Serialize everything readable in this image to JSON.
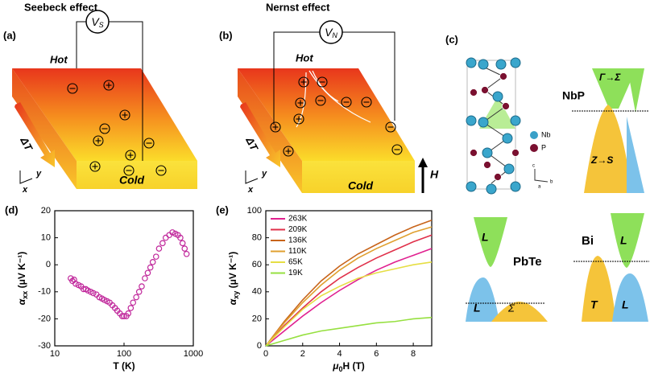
{
  "panels": {
    "a": {
      "label": "(a)",
      "title": "Seebeck effect",
      "voltage": {
        "main": "V",
        "sub": "S"
      },
      "hot": "Hot",
      "cold": "Cold",
      "gradient": "ΔT",
      "axis_y": "y",
      "axis_x": "x"
    },
    "b": {
      "label": "(b)",
      "title": "Nernst effect",
      "voltage": {
        "main": "V",
        "sub": "N"
      },
      "hot": "Hot",
      "cold": "Cold",
      "gradient": "ΔT",
      "axis_y": "y",
      "axis_x": "x",
      "field": "H"
    },
    "c": {
      "label": "(c)",
      "atoms": [
        "Nb",
        "P"
      ],
      "crystal_axes": [
        "c",
        "a",
        "b"
      ],
      "nbp": {
        "name": "NbP",
        "upper": "Γ→Σ",
        "lower": "Z→S"
      },
      "pbte": {
        "name": "PbTe",
        "upper": "L",
        "lower_left": "L",
        "lower_right": "Σ"
      },
      "bi": {
        "name": "Bi",
        "upper": "L",
        "lower_left": "T",
        "lower_right": "L"
      }
    }
  },
  "chart_data": [
    {
      "type": "scatter",
      "panel": "(d)",
      "color": "#c0279b",
      "xlabel": "T (K)",
      "ylabel": {
        "text": "α",
        "sub": "xx",
        "rest": " (μV K⁻¹)"
      },
      "xscale": "log",
      "xlim": [
        10,
        1000
      ],
      "xticks": [
        10,
        100,
        1000
      ],
      "ylim": [
        -30,
        20
      ],
      "yticks": [
        -30,
        -20,
        -10,
        0,
        10,
        20
      ],
      "x": [
        17,
        18,
        19,
        20,
        22,
        24,
        26,
        28,
        30,
        33,
        36,
        40,
        44,
        48,
        52,
        57,
        62,
        68,
        74,
        80,
        87,
        94,
        100,
        108,
        115,
        125,
        135,
        150,
        165,
        180,
        200,
        220,
        240,
        260,
        290,
        320,
        360,
        400,
        450,
        500,
        550,
        600,
        650,
        700,
        750,
        800
      ],
      "values": [
        -5,
        -6,
        -5.5,
        -7,
        -7.5,
        -8,
        -9,
        -9,
        -9.5,
        -10,
        -10.5,
        -11,
        -12,
        -12.5,
        -13,
        -13.5,
        -14,
        -15,
        -16,
        -17,
        -18,
        -19,
        -19,
        -19,
        -18,
        -16,
        -14,
        -12,
        -10,
        -8,
        -5,
        -3,
        -1,
        1,
        3,
        6,
        8,
        10,
        11,
        12,
        11.5,
        11,
        10,
        8,
        6,
        4
      ]
    },
    {
      "type": "line",
      "panel": "(e)",
      "xlabel": {
        "text": "μ",
        "sub": "0",
        "rest": "H (T)"
      },
      "ylabel": {
        "text": "α",
        "sub": "xy",
        "rest": " (μV K⁻¹)"
      },
      "xlim": [
        0,
        9
      ],
      "xticks": [
        0,
        2,
        4,
        6,
        8
      ],
      "ylim": [
        0,
        100
      ],
      "yticks": [
        0,
        20,
        40,
        60,
        80,
        100
      ],
      "legend": "upper left",
      "x": [
        0,
        1,
        2,
        3,
        4,
        5,
        6,
        7,
        8,
        9
      ],
      "series": [
        {
          "name": "263K",
          "color": "#e0208f",
          "values": [
            0,
            11,
            22,
            32,
            41,
            49,
            56,
            62,
            67,
            72
          ]
        },
        {
          "name": "209K",
          "color": "#e0304a",
          "values": [
            0,
            15,
            28,
            40,
            50,
            58,
            65,
            71,
            77,
            82
          ]
        },
        {
          "name": "136K",
          "color": "#c8641a",
          "values": [
            0,
            18,
            34,
            48,
            59,
            68,
            75,
            82,
            88,
            93
          ]
        },
        {
          "name": "110K",
          "color": "#e0a030",
          "values": [
            0,
            17,
            32,
            45,
            56,
            65,
            72,
            78,
            84,
            88
          ]
        },
        {
          "name": "65K",
          "color": "#e6de44",
          "values": [
            0,
            14,
            27,
            37,
            44,
            50,
            54,
            57,
            60,
            62
          ]
        },
        {
          "name": "19K",
          "color": "#96e040",
          "values": [
            0,
            4,
            8,
            11,
            13,
            15,
            17,
            18,
            20,
            21
          ]
        }
      ]
    }
  ]
}
